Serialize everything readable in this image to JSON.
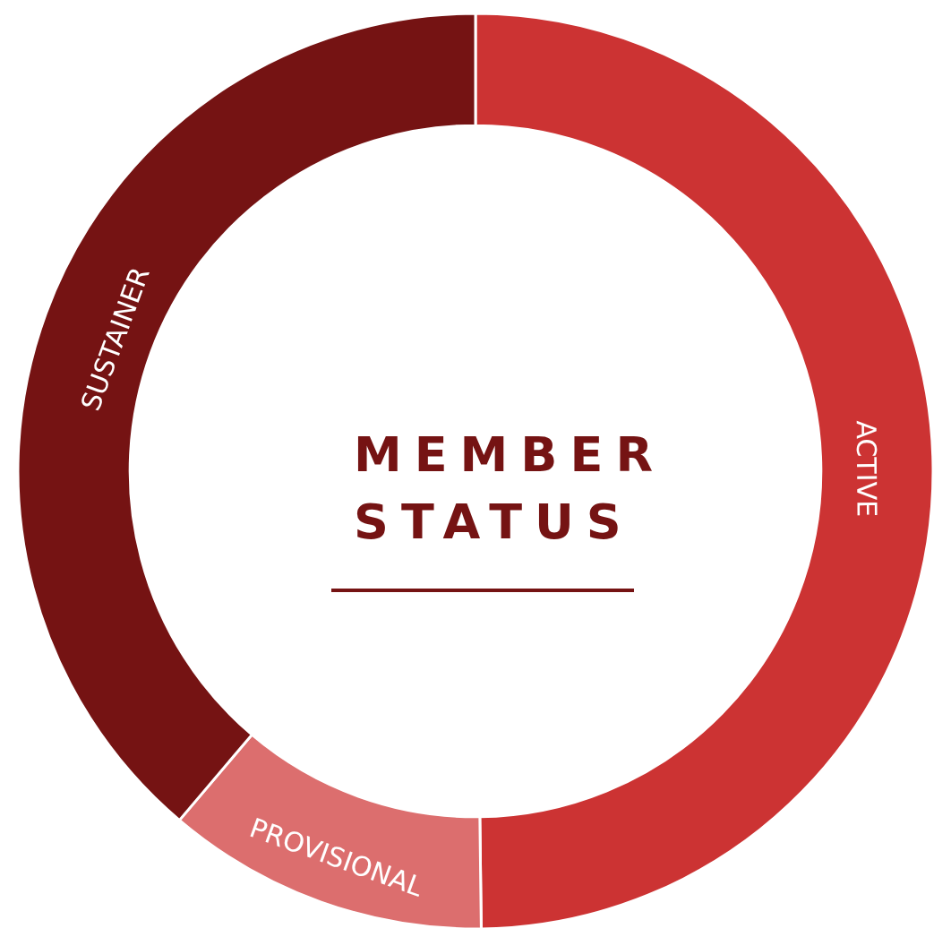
{
  "chart_data": {
    "type": "donut",
    "title": "MEMBER STATUS",
    "categories": [
      "ACTIVE",
      "PROVISIONAL",
      "SUSTAINER"
    ],
    "values": [
      49.8,
      11.4,
      38.8
    ],
    "colors": [
      "#cc3333",
      "#dc6e6e",
      "#751313"
    ],
    "legend": false
  }
}
